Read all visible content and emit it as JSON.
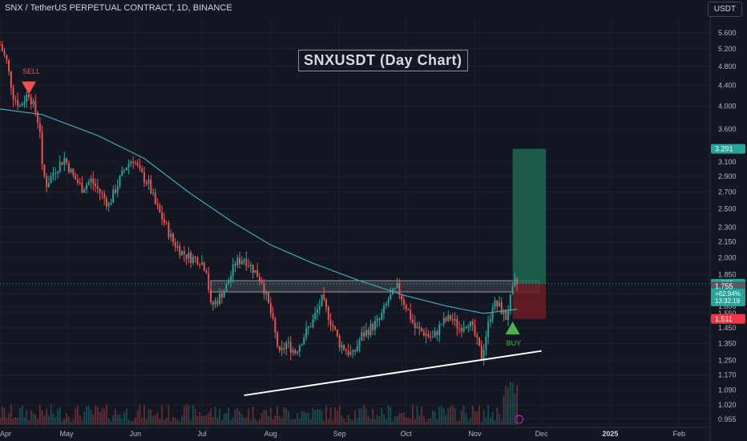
{
  "header": {
    "symbol_line": "SNX / TetherUS PERPETUAL CONTRACT, 1D, BINANCE"
  },
  "unit_label": "USDT",
  "chart_title": "SNXUSDT (Day Chart)",
  "signals": {
    "sell": "SELL",
    "buy": "BUY"
  },
  "colors": {
    "background": "#131722",
    "up": "#26a69a",
    "down": "#ef5350",
    "ma": "#3fa9b4",
    "grid": "#1c2030",
    "target_zone": "#1e6b52",
    "stop_zone": "#6b1d24",
    "trendline": "#ffffff",
    "sell_marker": "#ef5350",
    "buy_marker": "#4caf50"
  },
  "chart_data": {
    "type": "candlestick",
    "y_scale": "log",
    "ylim": [
      0.93,
      6.0
    ],
    "y_ticks": [
      "5.600",
      "5.200",
      "4.800",
      "4.400",
      "4.000",
      "3.600",
      "3.100",
      "2.900",
      "2.700",
      "2.500",
      "2.300",
      "2.150",
      "2.000",
      "1.850",
      "1.700",
      "1.600",
      "1.550",
      "1.450",
      "1.350",
      "1.250",
      "1.170",
      "1.090",
      "1.020",
      "0.955"
    ],
    "x_ticks": [
      "Apr",
      "May",
      "Jun",
      "Jul",
      "Aug",
      "Sep",
      "Oct",
      "Nov",
      "Dec",
      "2025",
      "Feb"
    ],
    "x_range": [
      "2024-04-01",
      "2025-02-15"
    ],
    "closes": [
      [
        "2024-04-01",
        5.3
      ],
      [
        "2024-04-04",
        4.9
      ],
      [
        "2024-04-07",
        4.2
      ],
      [
        "2024-04-10",
        4.0
      ],
      [
        "2024-04-13",
        4.2
      ],
      [
        "2024-04-14",
        4.25
      ],
      [
        "2024-04-17",
        3.9
      ],
      [
        "2024-04-19",
        3.6
      ],
      [
        "2024-04-20",
        3.0
      ],
      [
        "2024-04-22",
        2.8
      ],
      [
        "2024-04-26",
        3.0
      ],
      [
        "2024-04-30",
        3.15
      ],
      [
        "2024-05-04",
        2.9
      ],
      [
        "2024-05-08",
        2.75
      ],
      [
        "2024-05-12",
        2.85
      ],
      [
        "2024-05-16",
        2.7
      ],
      [
        "2024-05-20",
        2.55
      ],
      [
        "2024-05-24",
        2.8
      ],
      [
        "2024-05-28",
        3.05
      ],
      [
        "2024-05-31",
        3.15
      ],
      [
        "2024-06-03",
        2.95
      ],
      [
        "2024-06-07",
        2.8
      ],
      [
        "2024-06-10",
        2.55
      ],
      [
        "2024-06-14",
        2.35
      ],
      [
        "2024-06-18",
        2.15
      ],
      [
        "2024-06-22",
        2.05
      ],
      [
        "2024-06-26",
        2.0
      ],
      [
        "2024-06-30",
        1.98
      ],
      [
        "2024-07-03",
        1.9
      ],
      [
        "2024-07-05",
        1.6
      ],
      [
        "2024-07-08",
        1.65
      ],
      [
        "2024-07-12",
        1.75
      ],
      [
        "2024-07-16",
        1.95
      ],
      [
        "2024-07-20",
        2.0
      ],
      [
        "2024-07-24",
        1.9
      ],
      [
        "2024-07-28",
        1.8
      ],
      [
        "2024-08-01",
        1.55
      ],
      [
        "2024-08-05",
        1.28
      ],
      [
        "2024-08-08",
        1.35
      ],
      [
        "2024-08-12",
        1.3
      ],
      [
        "2024-08-16",
        1.4
      ],
      [
        "2024-08-20",
        1.5
      ],
      [
        "2024-08-24",
        1.65
      ],
      [
        "2024-08-28",
        1.5
      ],
      [
        "2024-09-01",
        1.35
      ],
      [
        "2024-09-05",
        1.3
      ],
      [
        "2024-09-07",
        1.28
      ],
      [
        "2024-09-11",
        1.4
      ],
      [
        "2024-09-15",
        1.45
      ],
      [
        "2024-09-19",
        1.5
      ],
      [
        "2024-09-23",
        1.65
      ],
      [
        "2024-09-27",
        1.74
      ],
      [
        "2024-10-01",
        1.6
      ],
      [
        "2024-10-05",
        1.45
      ],
      [
        "2024-10-09",
        1.42
      ],
      [
        "2024-10-13",
        1.38
      ],
      [
        "2024-10-17",
        1.48
      ],
      [
        "2024-10-21",
        1.52
      ],
      [
        "2024-10-25",
        1.45
      ],
      [
        "2024-10-29",
        1.5
      ],
      [
        "2024-11-01",
        1.4
      ],
      [
        "2024-11-04",
        1.27
      ],
      [
        "2024-11-06",
        1.4
      ],
      [
        "2024-11-09",
        1.62
      ],
      [
        "2024-11-12",
        1.6
      ],
      [
        "2024-11-15",
        1.52
      ],
      [
        "2024-11-17",
        1.65
      ],
      [
        "2024-11-19",
        1.78
      ],
      [
        "2024-11-20",
        1.77
      ]
    ],
    "moving_average": [
      [
        "2024-04-01",
        3.95
      ],
      [
        "2024-04-20",
        3.85
      ],
      [
        "2024-05-15",
        3.5
      ],
      [
        "2024-06-05",
        3.15
      ],
      [
        "2024-06-25",
        2.7
      ],
      [
        "2024-07-15",
        2.35
      ],
      [
        "2024-08-01",
        2.12
      ],
      [
        "2024-08-20",
        1.95
      ],
      [
        "2024-09-10",
        1.8
      ],
      [
        "2024-10-01",
        1.68
      ],
      [
        "2024-10-20",
        1.6
      ],
      [
        "2024-11-05",
        1.55
      ],
      [
        "2024-11-20",
        1.58
      ]
    ],
    "resistance_zone": {
      "from": "2024-07-05",
      "to": "2024-11-30",
      "low": 1.71,
      "high": 1.8
    },
    "trendline": {
      "start": [
        "2024-07-20",
        1.065
      ],
      "end": [
        "2024-12-01",
        1.305
      ]
    },
    "position": {
      "from": "2024-11-18",
      "to": "2024-12-03",
      "entry": 1.775,
      "target": 3.291,
      "stop": 1.511
    },
    "price_labels": [
      {
        "value": 3.291,
        "text": "3.291",
        "color": "#26a69a"
      },
      {
        "value": 1.775,
        "text": "1.775",
        "color": "#26a69a"
      },
      {
        "value": 1.755,
        "text": "1.755",
        "color": "#555a66"
      },
      {
        "value": 1.511,
        "text": "1.511",
        "color": "#f23645"
      }
    ],
    "last_price_extra": [
      "+62.94%",
      "13:32:18"
    ],
    "sell_signal": {
      "date": "2024-04-14",
      "price": 4.35
    },
    "buy_signal": {
      "date": "2024-11-18",
      "price": 1.45
    }
  }
}
